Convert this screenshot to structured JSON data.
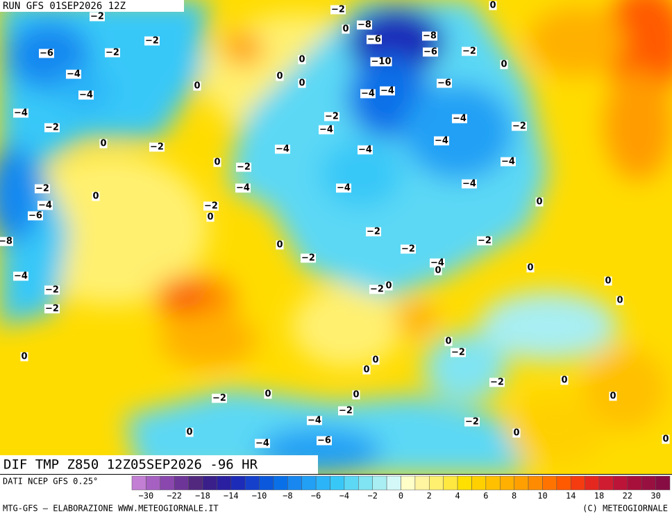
{
  "header": {
    "run": "RUN GFS 01SEP2026 12Z",
    "title": "DIF TMP Z850 12Z05SEP2026 -96 HR"
  },
  "contour_labels": [
    "−2",
    "−2",
    "0",
    "−8",
    "0",
    "−6",
    "−8",
    "−6",
    "−2",
    "−2",
    "−6",
    "−2",
    "0",
    "−10",
    "0",
    "−4",
    "0",
    "0",
    "0",
    "−4",
    "−6",
    "−4",
    "−4",
    "−4",
    "−2",
    "−4",
    "−2",
    "−4",
    "−2",
    "0",
    "−2",
    "−4",
    "−4",
    "−4",
    "0",
    "−2",
    "−4",
    "−2",
    "−4",
    "−4",
    "−4",
    "0",
    "−4",
    "−2",
    "0",
    "−6",
    "0",
    "−8",
    "−2",
    "−2",
    "0",
    "−2",
    "−2",
    "−4",
    "0",
    "0",
    "−4",
    "−2",
    "−2",
    "0",
    "0",
    "−2",
    "0",
    "0",
    "−2",
    "0",
    "0",
    "0",
    "−2",
    "0",
    "0",
    "−2",
    "0",
    "0",
    "−2",
    "−4",
    "−2",
    "0",
    "0",
    "−6",
    "−4",
    "0"
  ],
  "colorbar": {
    "source": "DATI NCEP GFS 0.25°",
    "colors": [
      "#c27fd4",
      "#a660c2",
      "#8a48ae",
      "#6e3598",
      "#52287f",
      "#3a1f8a",
      "#2a1fa0",
      "#1c2bb8",
      "#1440cc",
      "#0b58dc",
      "#0a70e8",
      "#1888f0",
      "#22a0f5",
      "#2cb4f8",
      "#38c8f8",
      "#5cd8f5",
      "#80e4f2",
      "#a8eef2",
      "#d4f8f8",
      "#ffffc8",
      "#fff4a0",
      "#fff070",
      "#ffe840",
      "#ffe000",
      "#ffd000",
      "#ffc000",
      "#ffb000",
      "#ffa000",
      "#ff8c00",
      "#ff7400",
      "#ff5a00",
      "#f43c10",
      "#e42820",
      "#d01c30",
      "#bc1438",
      "#a8103c",
      "#981040",
      "#880c44"
    ],
    "labels": [
      "−30",
      "−22",
      "−18",
      "−14",
      "−10",
      "−8",
      "−6",
      "−4",
      "−2",
      "0",
      "2",
      "4",
      "6",
      "8",
      "10",
      "14",
      "18",
      "22",
      "30"
    ]
  },
  "footer": {
    "credit": "MTG-GFS — ELABORAZIONE WWW.METEOGIORNALE.IT",
    "copyright": "(C) METEOGIORNALE"
  }
}
